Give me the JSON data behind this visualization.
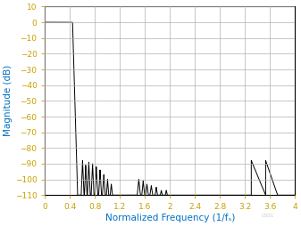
{
  "xlabel": "Normalized Frequency (1/fₛ)",
  "ylabel": "Magnitude (dB)",
  "xlim": [
    0,
    4
  ],
  "ylim": [
    -110,
    10
  ],
  "xticks": [
    0,
    0.4,
    0.8,
    1.2,
    1.6,
    2.0,
    2.4,
    2.8,
    3.2,
    3.6,
    4.0
  ],
  "yticks": [
    10,
    0,
    -10,
    -20,
    -30,
    -40,
    -50,
    -60,
    -70,
    -80,
    -90,
    -100,
    -110
  ],
  "line_color": "#000000",
  "axis_label_color": "#0070c0",
  "grid_color": "#b0b0b0",
  "background_color": "#ffffff",
  "tick_label_color": "#c8a000",
  "watermark": "C001",
  "passband_end": 0.44,
  "rolloff_end": 0.52,
  "sidelobes1_centers": [
    0.6,
    0.65,
    0.7,
    0.76,
    0.82,
    0.88,
    0.94,
    1.0,
    1.06
  ],
  "sidelobes1_heights": [
    -88,
    -91,
    -89,
    -90,
    -92,
    -94,
    -97,
    -100,
    -103
  ],
  "sidelobes1_widths": [
    0.022,
    0.02,
    0.022,
    0.022,
    0.022,
    0.022,
    0.022,
    0.018,
    0.018
  ],
  "sidelobes2_centers": [
    1.5,
    1.57,
    1.63,
    1.7,
    1.78,
    1.86,
    1.94
  ],
  "sidelobes2_heights": [
    -100,
    -101,
    -103,
    -104,
    -105,
    -107,
    -107
  ],
  "sidelobes2_widths": [
    0.025,
    0.022,
    0.022,
    0.022,
    0.018,
    0.016,
    0.016
  ],
  "alias_start": 3.3,
  "alias_peak": 3.53,
  "alias_end": 3.72,
  "alias_height": -88
}
